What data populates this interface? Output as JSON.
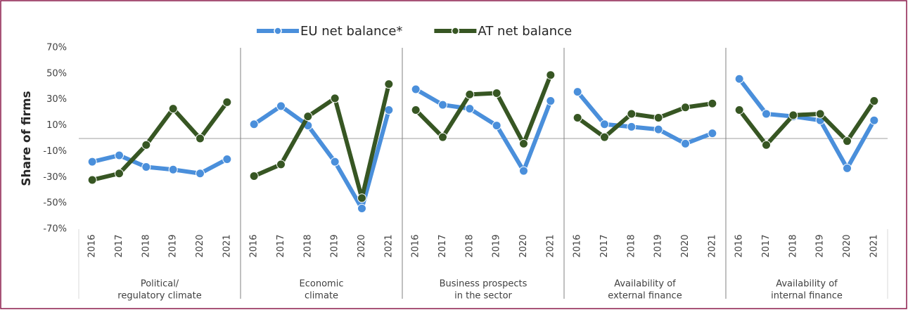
{
  "chart_data": {
    "type": "line",
    "ylabel": "Share of firms",
    "ylim": [
      -70,
      70
    ],
    "yticks": [
      {
        "value": -70,
        "label": "-70%"
      },
      {
        "value": -50,
        "label": "-50%"
      },
      {
        "value": -30,
        "label": "-30%"
      },
      {
        "value": -10,
        "label": "-10%"
      },
      {
        "value": 10,
        "label": "10%"
      },
      {
        "value": 30,
        "label": "30%"
      },
      {
        "value": 50,
        "label": "50%"
      },
      {
        "value": 70,
        "label": "70%"
      }
    ],
    "groups": [
      {
        "label": [
          "Political/",
          "regulatory climate"
        ],
        "categories": [
          "2016",
          "2017",
          "2018",
          "2019",
          "2020",
          "2021"
        ]
      },
      {
        "label": [
          "Economic",
          "climate"
        ],
        "categories": [
          "2016",
          "2017",
          "2018",
          "2019",
          "2020",
          "2021"
        ]
      },
      {
        "label": [
          "Business prospects",
          "in the sector"
        ],
        "categories": [
          "2016",
          "2017",
          "2018",
          "2019",
          "2020",
          "2021"
        ]
      },
      {
        "label": [
          "Availability of",
          "external finance"
        ],
        "categories": [
          "2016",
          "2017",
          "2018",
          "2019",
          "2020",
          "2021"
        ]
      },
      {
        "label": [
          "Availability of",
          "internal finance"
        ],
        "categories": [
          "2016",
          "2017",
          "2018",
          "2019",
          "2020",
          "2021"
        ]
      }
    ],
    "series": [
      {
        "name": "EU net balance*",
        "color": "#4a8fdb",
        "values": [
          [
            -18,
            -13,
            -22,
            -24,
            -27,
            -16
          ],
          [
            11,
            25,
            10,
            -18,
            -54,
            22
          ],
          [
            38,
            26,
            23,
            10,
            -25,
            29
          ],
          [
            36,
            11,
            9,
            7,
            -4,
            4
          ],
          [
            46,
            19,
            17,
            14,
            -23,
            14
          ]
        ]
      },
      {
        "name": "AT net balance",
        "color": "#375623",
        "values": [
          [
            -32,
            -27,
            -5,
            23,
            0,
            28
          ],
          [
            -29,
            -20,
            17,
            31,
            -46,
            42
          ],
          [
            22,
            1,
            34,
            35,
            -4,
            49
          ],
          [
            16,
            1,
            19,
            16,
            24,
            27
          ],
          [
            22,
            -5,
            18,
            19,
            -2,
            29
          ]
        ]
      }
    ],
    "legend": "top"
  }
}
